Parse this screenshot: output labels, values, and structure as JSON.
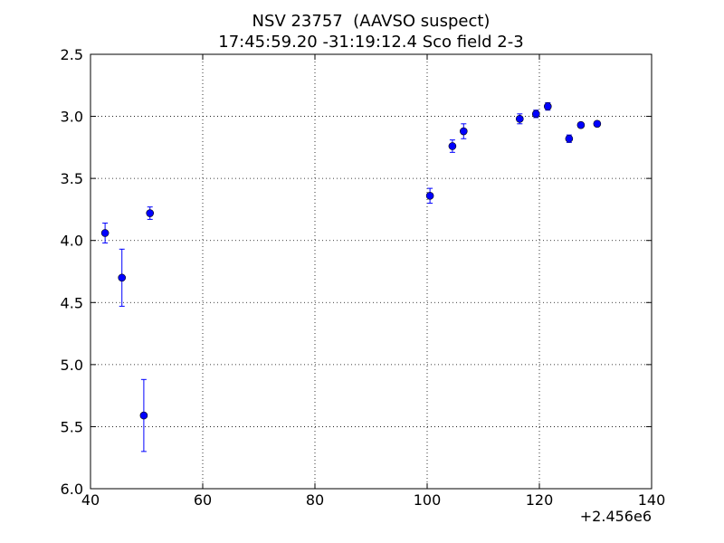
{
  "chart_data": {
    "type": "errorbar",
    "title": "NSV 23757  (AAVSO suspect)",
    "subtitle": "17:45:59.20 -31:19:12.4 Sco field 2-3",
    "x_offset_label": "+2.456e6",
    "xlim": [
      40,
      140
    ],
    "xticks": [
      40,
      60,
      80,
      100,
      120,
      140
    ],
    "ylim": [
      6.0,
      2.5
    ],
    "yticks": [
      2.5,
      {
        "value": 3.0,
        "label": "3.0"
      },
      3.5,
      {
        "value": 4.0,
        "label": "4.0"
      },
      4.5,
      {
        "value": 5.0,
        "label": "5.0"
      },
      5.5,
      {
        "value": 6.0,
        "label": "6.0"
      }
    ],
    "grid": true,
    "series": [
      {
        "color": "#0000ff",
        "x": [
          42.6,
          45.6,
          49.5,
          50.6,
          100.5,
          104.5,
          106.5,
          116.5,
          119.4,
          121.5,
          125.3,
          127.4,
          130.3
        ],
        "values": [
          3.94,
          4.3,
          5.41,
          3.78,
          3.64,
          3.24,
          3.12,
          3.02,
          2.98,
          2.92,
          3.18,
          3.07,
          3.06
        ],
        "errors": [
          0.08,
          0.23,
          0.29,
          0.05,
          0.06,
          0.05,
          0.06,
          0.04,
          0.03,
          0.03,
          0.03,
          0.02,
          0.02
        ]
      }
    ]
  }
}
